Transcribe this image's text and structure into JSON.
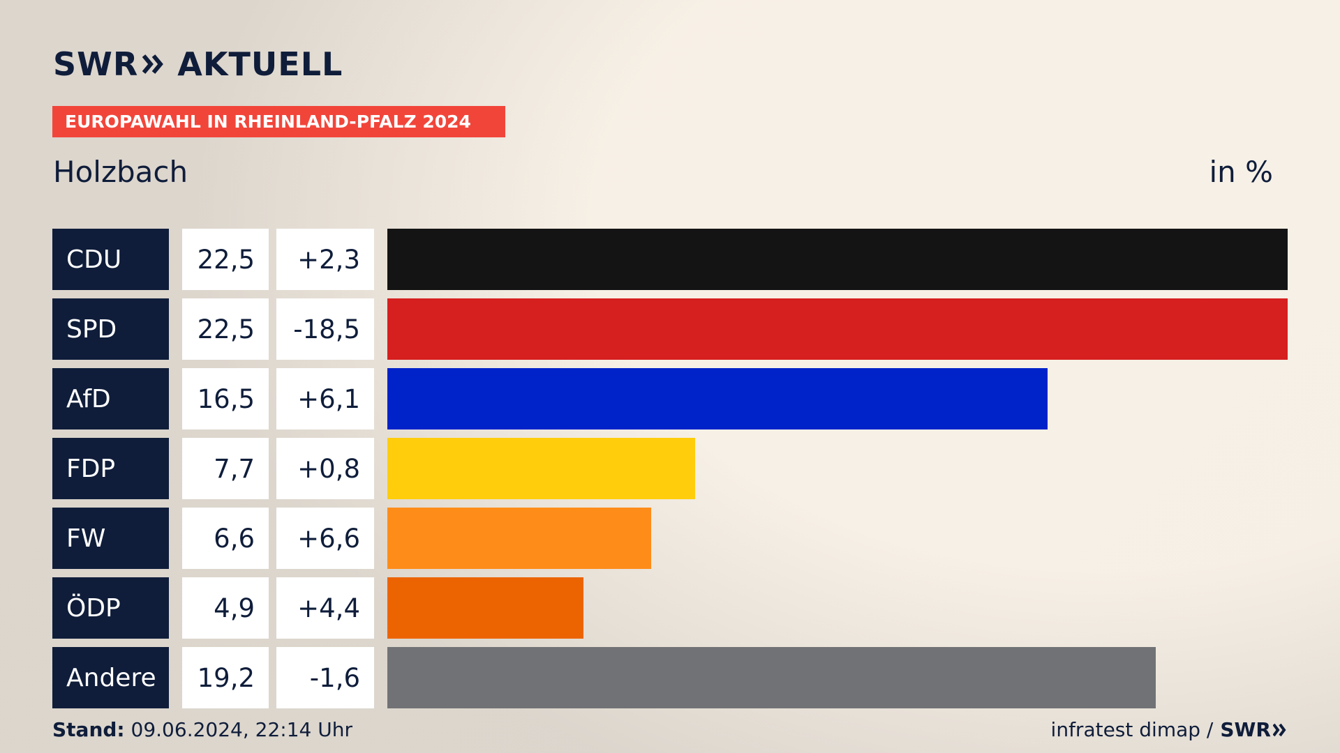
{
  "brand": {
    "logo_swr": "SWR",
    "logo_aktuell": "AKTUELL"
  },
  "header": {
    "badge": "EUROPAWAHL IN RHEINLAND-PFALZ 2024",
    "place": "Holzbach",
    "unit": "in %"
  },
  "colors": {
    "accent": "#f2453a",
    "navy": "#0f1d3a"
  },
  "chart_data": {
    "type": "bar",
    "orientation": "horizontal",
    "categories": [
      "CDU",
      "SPD",
      "AfD",
      "FDP",
      "FW",
      "ÖDP",
      "Andere"
    ],
    "values": [
      22.5,
      22.5,
      16.5,
      7.7,
      6.6,
      4.9,
      19.2
    ],
    "value_labels": [
      "22,5",
      "22,5",
      "16,5",
      "7,7",
      "6,6",
      "4,9",
      "19,2"
    ],
    "changes": [
      2.3,
      -18.5,
      6.1,
      0.8,
      6.6,
      4.4,
      -1.6
    ],
    "change_labels": [
      "+2,3",
      "-18,5",
      "+6,1",
      "+0,8",
      "+6,6",
      "+4,4",
      "-1,6"
    ],
    "bar_colors": [
      "#141414",
      "#d61f1f",
      "#0022c9",
      "#ffcd0c",
      "#fe8c19",
      "#ec6402",
      "#717275"
    ],
    "xlim": [
      0,
      22.5
    ]
  },
  "footer": {
    "stand_label": "Stand:",
    "stand_value": "09.06.2024, 22:14 Uhr",
    "source": "infratest dimap /",
    "source_logo": "SWR"
  }
}
